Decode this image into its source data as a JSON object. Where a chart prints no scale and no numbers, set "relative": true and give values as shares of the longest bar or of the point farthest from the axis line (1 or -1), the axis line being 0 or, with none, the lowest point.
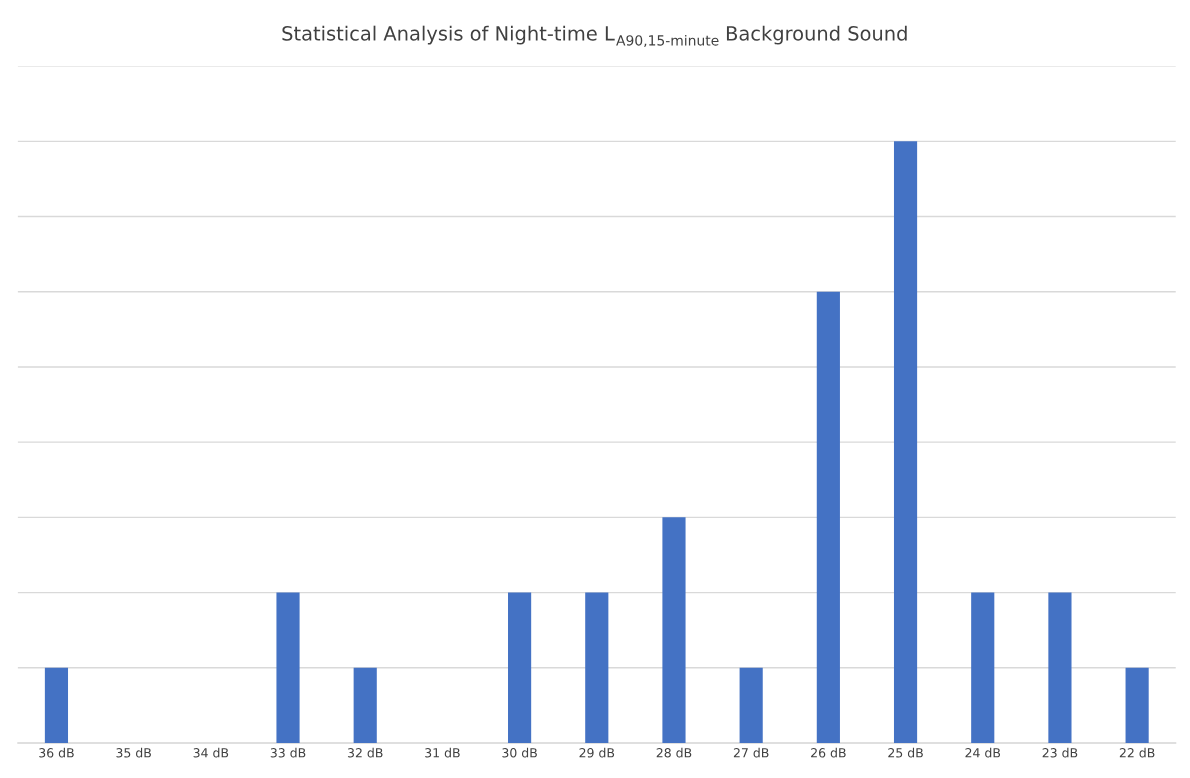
{
  "chart_data": {
    "type": "bar",
    "title": "Statistical Analysis of Night-time L$_{A90,15-minute}$ Background Sound",
    "categories": [
      "36 dB",
      "35 dB",
      "34 dB",
      "33 dB",
      "32 dB",
      "31 dB",
      "30 dB",
      "29 dB",
      "28 dB",
      "27 dB",
      "26 dB",
      "25 dB",
      "24 dB",
      "23 dB",
      "22 dB"
    ],
    "values": [
      0.125,
      0,
      0,
      0.25,
      0.125,
      0,
      0.25,
      0.25,
      0.375,
      0.125,
      0.75,
      1,
      0.25,
      0.25,
      0.125
    ],
    "color": "#4472c4",
    "relative": true,
    "grid": "y",
    "legend": false
  }
}
